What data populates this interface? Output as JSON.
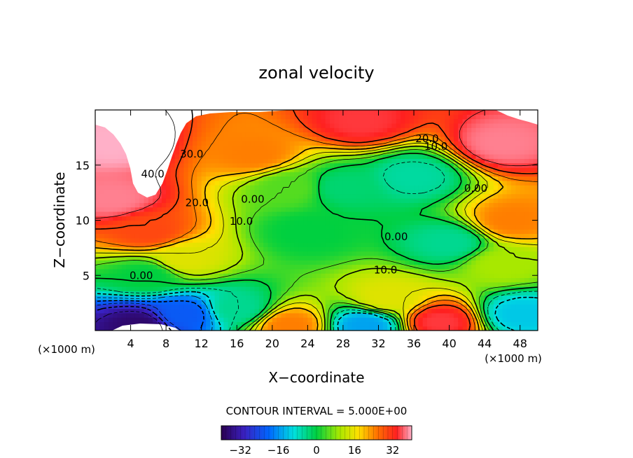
{
  "chart_data": {
    "type": "heatmap",
    "title": "zonal velocity",
    "xlabel": "X−coordinate",
    "ylabel": "Z−coordinate",
    "x_unit_left": "(×1000 m)",
    "x_unit_right": "(×1000 m)",
    "xlim": [
      0,
      50
    ],
    "ylim": [
      0,
      20
    ],
    "x_ticks": [
      4,
      8,
      12,
      16,
      20,
      24,
      28,
      32,
      36,
      40,
      44,
      48
    ],
    "y_ticks": [
      5,
      10,
      15
    ],
    "contour_interval_text": "CONTOUR INTERVAL = 5.000E+00",
    "contour_interval": 5,
    "colorbar": {
      "range": [
        -40,
        40
      ],
      "ticks": [
        -32,
        -16,
        0,
        16,
        32
      ],
      "colormap": "rainbow (purple-blue-cyan-green-yellow-red-pink)"
    },
    "contour_labels": [
      {
        "text": "40.0",
        "x": 6.5,
        "z": 14.2
      },
      {
        "text": "30.0",
        "x": 10.9,
        "z": 16.0
      },
      {
        "text": "20.0",
        "x": 11.5,
        "z": 11.6
      },
      {
        "text": "20.0",
        "x": 37.5,
        "z": 17.4
      },
      {
        "text": "10.0",
        "x": 38.5,
        "z": 16.7
      },
      {
        "text": "10.0",
        "x": 16.5,
        "z": 9.9
      },
      {
        "text": "10.0",
        "x": 32.8,
        "z": 5.5
      },
      {
        "text": "0.00",
        "x": 5.2,
        "z": 5.0
      },
      {
        "text": "0.00",
        "x": 17.8,
        "z": 11.9
      },
      {
        "text": "0.00",
        "x": 34.0,
        "z": 8.5
      },
      {
        "text": "0.00",
        "x": 43.0,
        "z": 12.9
      }
    ],
    "value_field_samples": [
      {
        "x": 2,
        "z": 17,
        "value": 40
      },
      {
        "x": 2,
        "z": 12,
        "value": 38
      },
      {
        "x": 6,
        "z": 9,
        "value": 30
      },
      {
        "x": 10,
        "z": 6.5,
        "value": 15
      },
      {
        "x": 6,
        "z": 5,
        "value": 0
      },
      {
        "x": 5,
        "z": 0.5,
        "value": -38
      },
      {
        "x": 10,
        "z": 1.5,
        "value": -22
      },
      {
        "x": 16,
        "z": 2,
        "value": -5
      },
      {
        "x": 18,
        "z": 16,
        "value": 25
      },
      {
        "x": 22,
        "z": 13,
        "value": 5
      },
      {
        "x": 24,
        "z": 9,
        "value": 0
      },
      {
        "x": 28,
        "z": 13,
        "value": -3
      },
      {
        "x": 36,
        "z": 14,
        "value": -6
      },
      {
        "x": 40,
        "z": 8,
        "value": -5
      },
      {
        "x": 30,
        "z": 19,
        "value": 35
      },
      {
        "x": 46,
        "z": 17,
        "value": 38
      },
      {
        "x": 47,
        "z": 10,
        "value": 25
      },
      {
        "x": 46,
        "z": 6,
        "value": 10
      },
      {
        "x": 48,
        "z": 1.5,
        "value": -12
      },
      {
        "x": 39,
        "z": 0.8,
        "value": 35
      },
      {
        "x": 30.5,
        "z": 0.5,
        "value": -15
      },
      {
        "x": 22,
        "z": 0.5,
        "value": 25
      },
      {
        "x": 33,
        "z": 3,
        "value": 15
      }
    ]
  }
}
